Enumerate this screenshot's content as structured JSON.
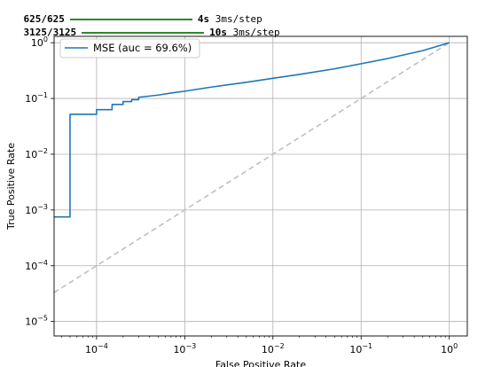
{
  "console": {
    "lines": [
      {
        "progress": "625/625",
        "time": "4s",
        "rate": "3ms/step"
      },
      {
        "progress": "3125/3125",
        "time": "10s",
        "rate": "3ms/step"
      }
    ]
  },
  "colors": {
    "curve": "#1f77b4",
    "diagonal": "#bfbfbf",
    "grid": "#b0b0b0",
    "progress_bar": "#2a8a2a"
  },
  "chart_data": {
    "type": "line",
    "xlabel": "False Positive Rate",
    "ylabel": "True Positive Rate",
    "xscale": "log",
    "yscale": "log",
    "xlim": [
      3.3e-05,
      1.6
    ],
    "ylim": [
      5.5e-06,
      1.3
    ],
    "grid": true,
    "legend_position": "top-left",
    "x_ticks": [
      {
        "value": 0.0001,
        "base": "10",
        "exp": "−4"
      },
      {
        "value": 0.001,
        "base": "10",
        "exp": "−3"
      },
      {
        "value": 0.01,
        "base": "10",
        "exp": "−2"
      },
      {
        "value": 0.1,
        "base": "10",
        "exp": "−1"
      },
      {
        "value": 1,
        "base": "10",
        "exp": "0"
      }
    ],
    "y_ticks": [
      {
        "value": 1e-05,
        "base": "10",
        "exp": "−5"
      },
      {
        "value": 0.0001,
        "base": "10",
        "exp": "−4"
      },
      {
        "value": 0.001,
        "base": "10",
        "exp": "−3"
      },
      {
        "value": 0.01,
        "base": "10",
        "exp": "−2"
      },
      {
        "value": 0.1,
        "base": "10",
        "exp": "−1"
      },
      {
        "value": 1,
        "base": "10",
        "exp": "0"
      }
    ],
    "series": [
      {
        "name": "MSE (auc = 69.6%)",
        "style": "step",
        "x": [
          3.3e-05,
          5e-05,
          5e-05,
          0.0001,
          0.0001,
          0.00015,
          0.00015,
          0.0002,
          0.0002,
          0.00025,
          0.00025,
          0.0003,
          0.0003,
          0.0005,
          0.0007,
          0.001,
          0.002,
          0.005,
          0.01,
          0.02,
          0.05,
          0.1,
          0.2,
          0.5,
          1
        ],
        "y": [
          0.00075,
          0.00075,
          0.052,
          0.052,
          0.063,
          0.063,
          0.078,
          0.078,
          0.088,
          0.088,
          0.095,
          0.095,
          0.105,
          0.115,
          0.125,
          0.135,
          0.16,
          0.195,
          0.23,
          0.27,
          0.34,
          0.42,
          0.52,
          0.72,
          1.0
        ]
      },
      {
        "name": "",
        "style": "dashed",
        "x": [
          3.3e-05,
          1
        ],
        "y": [
          3.3e-05,
          1
        ]
      }
    ]
  }
}
